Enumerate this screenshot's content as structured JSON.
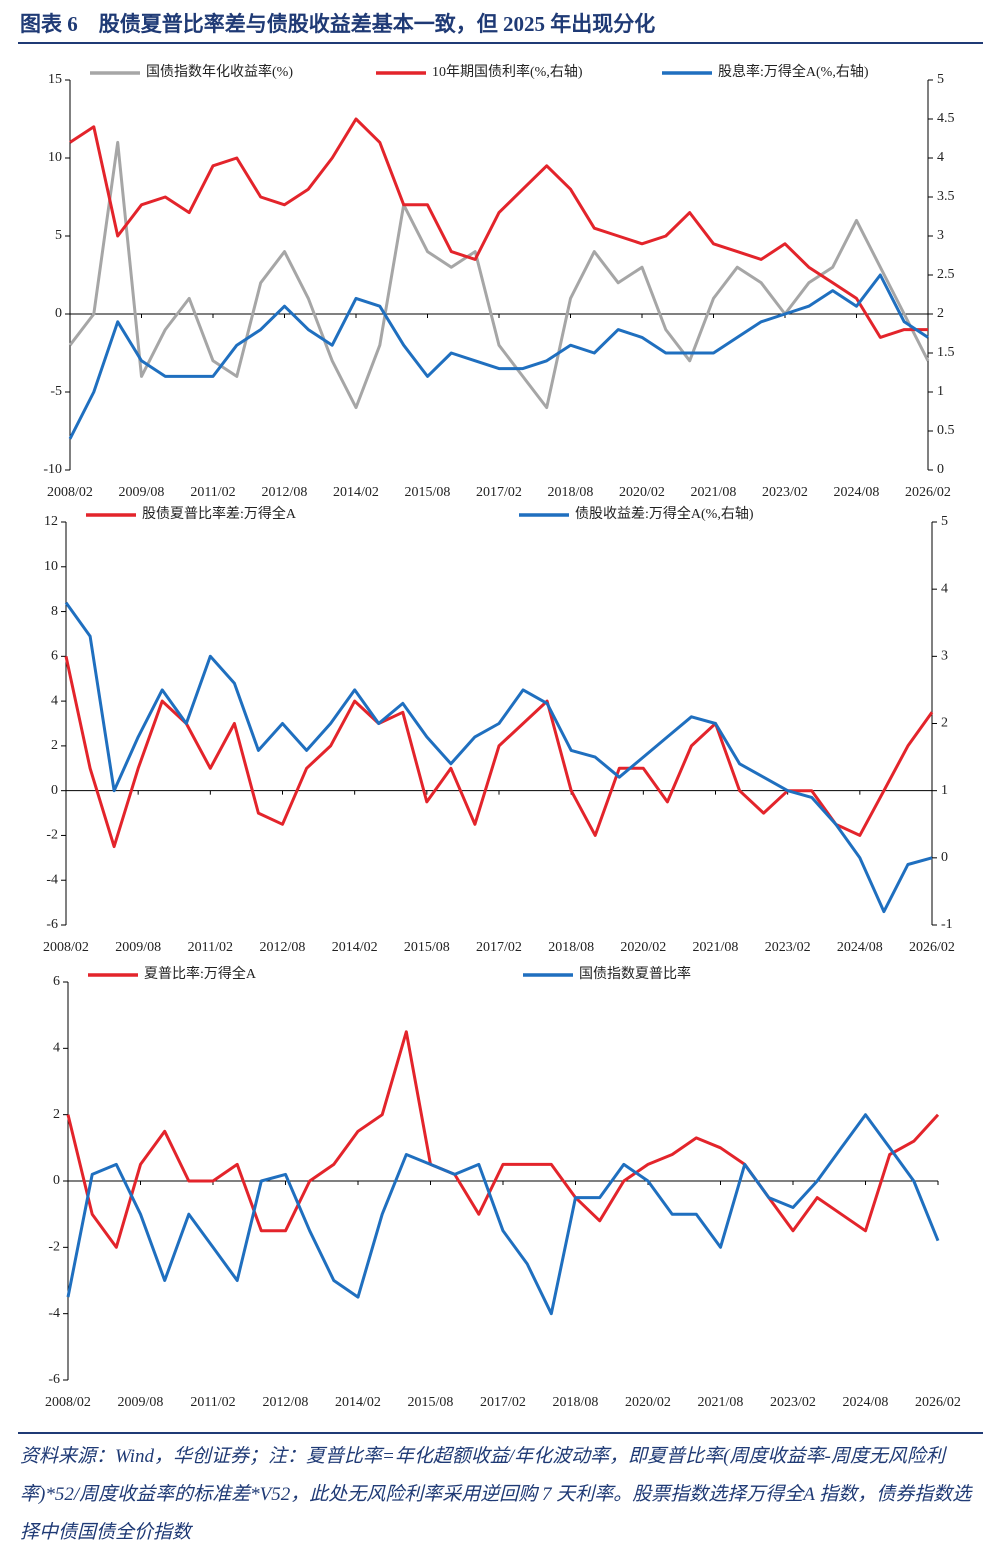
{
  "header": {
    "title": "图表 6　股债夏普比率差与债股收益差基本一致，但 2025 年出现分化"
  },
  "note": "资料来源：Wind，华创证券；注：夏普比率=年化超额收益/年化波动率，即夏普比率(周度收益率-周度无风险利率)*52/周度收益率的标准差*V52，此处无风险利率采用逆回购 7 天利率。股票指数选择万得全A 指数，债券指数选择中债国债全价指数",
  "chart_data": [
    {
      "type": "line",
      "legend": "top",
      "x": [
        "2008/02",
        "2008/08",
        "2009/02",
        "2009/08",
        "2010/02",
        "2010/08",
        "2011/02",
        "2011/08",
        "2012/02",
        "2012/08",
        "2013/02",
        "2013/08",
        "2014/02",
        "2014/08",
        "2015/02",
        "2015/08",
        "2016/02",
        "2016/08",
        "2017/02",
        "2017/08",
        "2018/02",
        "2018/08",
        "2019/02",
        "2019/08",
        "2020/02",
        "2020/08",
        "2021/02",
        "2021/08",
        "2022/02",
        "2022/08",
        "2023/02",
        "2023/08",
        "2024/02",
        "2024/08",
        "2025/02",
        "2025/08",
        "2026/02"
      ],
      "xlim": [
        "2008/02",
        "2026/02"
      ],
      "xticks": [
        "2008/02",
        "2009/08",
        "2011/02",
        "2012/08",
        "2014/02",
        "2015/08",
        "2017/02",
        "2018/08",
        "2020/02",
        "2021/08",
        "2023/02",
        "2024/08",
        "2026/02"
      ],
      "ylim": [
        -10,
        15
      ],
      "yticks": [
        -10,
        -5,
        0,
        5,
        10,
        15
      ],
      "y2lim": [
        0,
        5
      ],
      "y2ticks": [
        0,
        0.5,
        1,
        1.5,
        2,
        2.5,
        3,
        3.5,
        4,
        4.5,
        5
      ],
      "series": [
        {
          "name": "国债指数年化收益率(%)",
          "color": "#a6a6a6",
          "values": [
            -2,
            0,
            11,
            -4,
            -1,
            1,
            -3,
            -4,
            2,
            4,
            1,
            -3,
            -6,
            -2,
            7,
            4,
            3,
            4,
            -2,
            -4,
            -6,
            1,
            4,
            2,
            3,
            -1,
            -3,
            1,
            3,
            2,
            0,
            2,
            3,
            6,
            3,
            0,
            -3
          ]
        },
        {
          "name": "10年期国债利率(%,右轴)",
          "color": "#e3242b",
          "axis": "y2",
          "values": [
            4.2,
            4.4,
            3.0,
            3.4,
            3.5,
            3.3,
            3.9,
            4.0,
            3.5,
            3.4,
            3.6,
            4.0,
            4.5,
            4.2,
            3.4,
            3.4,
            2.8,
            2.7,
            3.3,
            3.6,
            3.9,
            3.6,
            3.1,
            3.0,
            2.9,
            3.0,
            3.3,
            2.9,
            2.8,
            2.7,
            2.9,
            2.6,
            2.4,
            2.2,
            1.7,
            1.8,
            1.8
          ]
        },
        {
          "name": "股息率:万得全A(%,右轴)",
          "color": "#1f6fbf",
          "axis": "y2",
          "values": [
            0.4,
            1.0,
            1.9,
            1.4,
            1.2,
            1.2,
            1.2,
            1.6,
            1.8,
            2.1,
            1.8,
            1.6,
            2.2,
            2.1,
            1.6,
            1.2,
            1.5,
            1.4,
            1.3,
            1.3,
            1.4,
            1.6,
            1.5,
            1.8,
            1.7,
            1.5,
            1.5,
            1.5,
            1.7,
            1.9,
            2.0,
            2.1,
            2.3,
            2.1,
            2.5,
            1.9,
            1.7
          ]
        }
      ]
    },
    {
      "type": "line",
      "legend": "top",
      "x": [
        "2008/02",
        "2008/08",
        "2009/02",
        "2009/08",
        "2010/02",
        "2010/08",
        "2011/02",
        "2011/08",
        "2012/02",
        "2012/08",
        "2013/02",
        "2013/08",
        "2014/02",
        "2014/08",
        "2015/02",
        "2015/08",
        "2016/02",
        "2016/08",
        "2017/02",
        "2017/08",
        "2018/02",
        "2018/08",
        "2019/02",
        "2019/08",
        "2020/02",
        "2020/08",
        "2021/02",
        "2021/08",
        "2022/02",
        "2022/08",
        "2023/02",
        "2023/08",
        "2024/02",
        "2024/08",
        "2025/02",
        "2025/08",
        "2026/02"
      ],
      "xlim": [
        "2008/02",
        "2026/02"
      ],
      "xticks": [
        "2008/02",
        "2009/08",
        "2011/02",
        "2012/08",
        "2014/02",
        "2015/08",
        "2017/02",
        "2018/08",
        "2020/02",
        "2021/08",
        "2023/02",
        "2024/08",
        "2026/02"
      ],
      "ylim": [
        -6,
        12
      ],
      "yticks": [
        -6,
        -4,
        -2,
        0,
        2,
        4,
        6,
        8,
        10,
        12
      ],
      "y2lim": [
        -1,
        5
      ],
      "y2ticks": [
        -1,
        0,
        1,
        2,
        3,
        4,
        5
      ],
      "series": [
        {
          "name": "股债夏普比率差:万得全A",
          "color": "#e3242b",
          "values": [
            6,
            1,
            -2.5,
            1,
            4,
            3,
            1,
            3,
            -1,
            -1.5,
            1,
            2,
            4,
            3,
            3.5,
            -0.5,
            1,
            -1.5,
            2,
            3,
            4,
            0,
            -2,
            1,
            1,
            -0.5,
            2,
            3,
            0,
            -1,
            0,
            0,
            -1.5,
            -2,
            0,
            2,
            3.5
          ]
        },
        {
          "name": "债股收益差:万得全A(%,右轴)",
          "color": "#1f6fbf",
          "axis": "y2",
          "values": [
            3.8,
            3.3,
            1.0,
            1.8,
            2.5,
            2.0,
            3.0,
            2.6,
            1.6,
            2.0,
            1.6,
            2.0,
            2.5,
            2.0,
            2.3,
            1.8,
            1.4,
            1.8,
            2.0,
            2.5,
            2.3,
            1.6,
            1.5,
            1.2,
            1.5,
            1.8,
            2.1,
            2.0,
            1.4,
            1.2,
            1.0,
            0.9,
            0.5,
            0.0,
            -0.8,
            -0.1,
            0.0
          ]
        }
      ]
    },
    {
      "type": "line",
      "legend": "top",
      "x": [
        "2008/02",
        "2008/08",
        "2009/02",
        "2009/08",
        "2010/02",
        "2010/08",
        "2011/02",
        "2011/08",
        "2012/02",
        "2012/08",
        "2013/02",
        "2013/08",
        "2014/02",
        "2014/08",
        "2015/02",
        "2015/08",
        "2016/02",
        "2016/08",
        "2017/02",
        "2017/08",
        "2018/02",
        "2018/08",
        "2019/02",
        "2019/08",
        "2020/02",
        "2020/08",
        "2021/02",
        "2021/08",
        "2022/02",
        "2022/08",
        "2023/02",
        "2023/08",
        "2024/02",
        "2024/08",
        "2025/02",
        "2025/08",
        "2026/02"
      ],
      "xlim": [
        "2008/02",
        "2026/02"
      ],
      "xticks": [
        "2008/02",
        "2009/08",
        "2011/02",
        "2012/08",
        "2014/02",
        "2015/08",
        "2017/02",
        "2018/08",
        "2020/02",
        "2021/08",
        "2023/02",
        "2024/08",
        "2026/02"
      ],
      "ylim": [
        -6,
        6
      ],
      "yticks": [
        -6,
        -4,
        -2,
        0,
        2,
        4,
        6
      ],
      "series": [
        {
          "name": "夏普比率:万得全A",
          "color": "#e3242b",
          "values": [
            2,
            -1,
            -2,
            0.5,
            1.5,
            0,
            0,
            0.5,
            -1.5,
            -1.5,
            0,
            0.5,
            1.5,
            2,
            4.5,
            0.5,
            0.2,
            -1,
            0.5,
            0.5,
            0.5,
            -0.5,
            -1.2,
            0,
            0.5,
            0.8,
            1.3,
            1.0,
            0.5,
            -0.5,
            -1.5,
            -0.5,
            -1.0,
            -1.5,
            0.8,
            1.2,
            2
          ]
        },
        {
          "name": "国债指数夏普比率",
          "color": "#1f6fbf",
          "values": [
            -3.5,
            0.2,
            0.5,
            -1,
            -3,
            -1,
            -2,
            -3,
            0,
            0.2,
            -1.5,
            -3,
            -3.5,
            -1,
            0.8,
            0.5,
            0.2,
            0.5,
            -1.5,
            -2.5,
            -4,
            -0.5,
            -0.5,
            0.5,
            0,
            -1,
            -1,
            -2,
            0.5,
            -0.5,
            -0.8,
            0,
            1.0,
            2.0,
            1.0,
            0,
            -1.8
          ]
        }
      ]
    }
  ]
}
